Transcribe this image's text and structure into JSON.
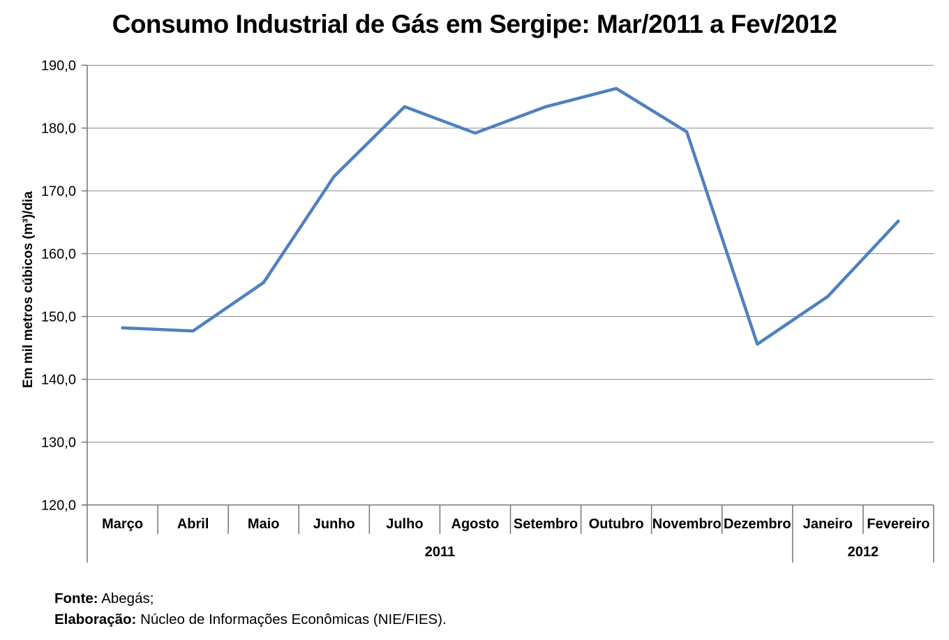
{
  "chart_data": {
    "type": "line",
    "title": "Consumo Industrial de Gás em Sergipe: Mar/2011 a Fev/2012",
    "ylabel": "Em mil metros cúbicos (m³)/dia",
    "xlabel": "",
    "categories": [
      "Março",
      "Abril",
      "Maio",
      "Junho",
      "Julho",
      "Agosto",
      "Setembro",
      "Outubro",
      "Novembro",
      "Dezembro",
      "Janeiro",
      "Fevereiro"
    ],
    "values": [
      148.2,
      147.7,
      155.4,
      172.3,
      183.4,
      179.2,
      183.4,
      186.3,
      179.4,
      145.6,
      153.2,
      165.2
    ],
    "year_groups": [
      {
        "label": "2011",
        "span": [
          0,
          9
        ]
      },
      {
        "label": "2012",
        "span": [
          10,
          11
        ]
      }
    ],
    "ylim": [
      120,
      190
    ],
    "yticks": [
      {
        "value": 190,
        "label": "190,0"
      },
      {
        "value": 180,
        "label": "180,0"
      },
      {
        "value": 170,
        "label": "170,0"
      },
      {
        "value": 160,
        "label": "160,0"
      },
      {
        "value": 150,
        "label": "150,0"
      },
      {
        "value": 140,
        "label": "140,0"
      },
      {
        "value": 130,
        "label": "130,0"
      },
      {
        "value": 120,
        "label": "120,0"
      }
    ],
    "grid": true,
    "legend": "none",
    "line_color": "#4F81BD"
  },
  "footer": {
    "source_label": "Fonte:",
    "source_text": "Abegás;",
    "elaboration_label": "Elaboração:",
    "elaboration_text": "Núcleo de Informações Econômicas (NIE/FIES)."
  },
  "colors": {
    "line": "#4F81BD",
    "grid": "#8F8F8F",
    "axis": "#747474",
    "text": "#000000",
    "background": "#FFFFFF"
  }
}
